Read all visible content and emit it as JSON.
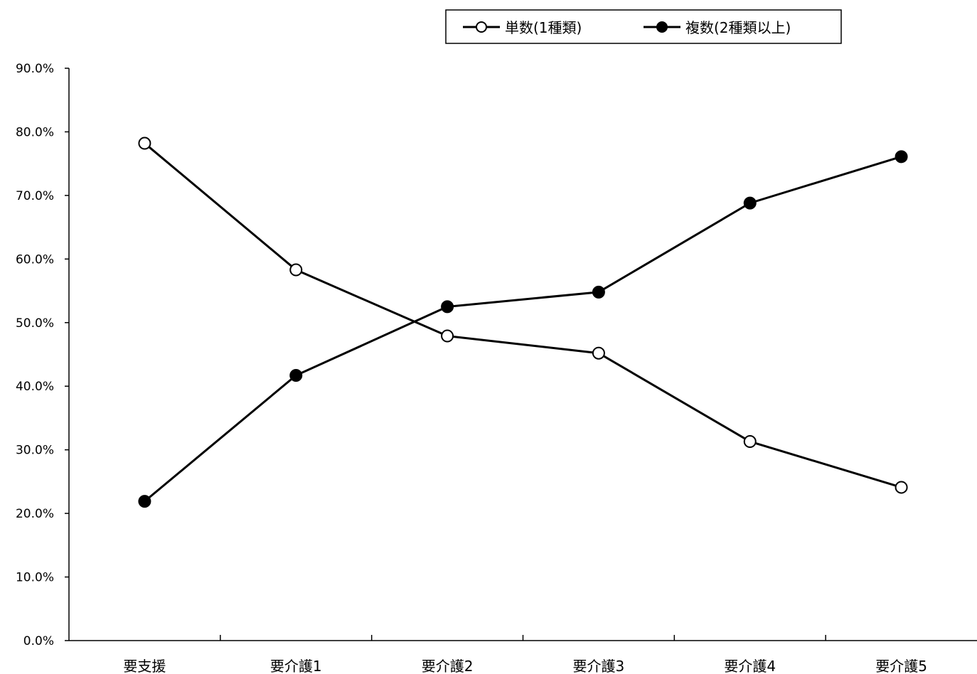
{
  "chart_data": {
    "type": "line",
    "categories": [
      "要支援",
      "要介護1",
      "要介護2",
      "要介護3",
      "要介護4",
      "要介護5"
    ],
    "ylim": [
      0,
      90
    ],
    "y_ticks": [
      0,
      10,
      20,
      30,
      40,
      50,
      60,
      70,
      80,
      90
    ],
    "y_tick_labels": [
      "0.0%",
      "10.0%",
      "20.0%",
      "30.0%",
      "40.0%",
      "50.0%",
      "60.0%",
      "70.0%",
      "80.0%",
      "90.0%"
    ],
    "grid": false,
    "legend_position": "top",
    "series": [
      {
        "name": "単数(1種類)",
        "marker": "open-circle",
        "color": "#000000",
        "values": [
          78.2,
          58.3,
          47.9,
          45.2,
          31.3,
          24.1
        ]
      },
      {
        "name": "複数(2種類以上)",
        "marker": "filled-circle",
        "color": "#000000",
        "values": [
          21.9,
          41.7,
          52.5,
          54.8,
          68.8,
          76.1
        ]
      }
    ]
  }
}
